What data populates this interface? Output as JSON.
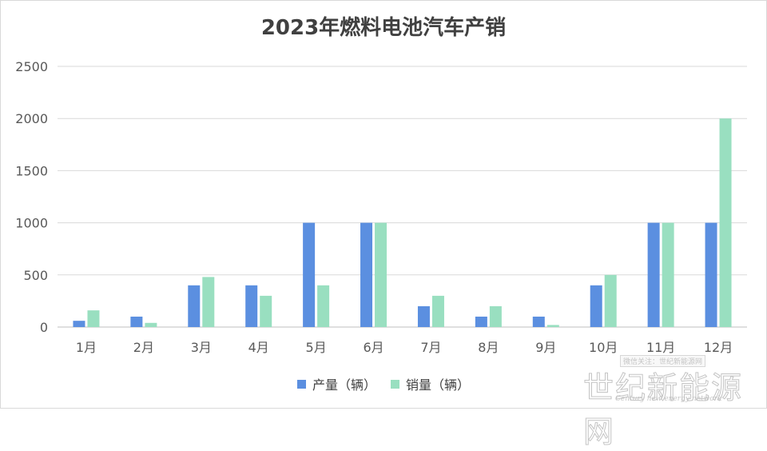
{
  "chart_data": {
    "type": "bar",
    "title": "2023年燃料电池汽车产销",
    "categories": [
      "1月",
      "2月",
      "3月",
      "4月",
      "5月",
      "6月",
      "7月",
      "8月",
      "9月",
      "10月",
      "11月",
      "12月"
    ],
    "series": [
      {
        "name": "产量（辆）",
        "color": "#5b8fe0",
        "values": [
          60,
          100,
          400,
          400,
          1000,
          1000,
          200,
          100,
          100,
          400,
          1000,
          1000
        ]
      },
      {
        "name": "销量（辆）",
        "color": "#99dfc0",
        "values": [
          160,
          40,
          480,
          300,
          400,
          1000,
          300,
          200,
          20,
          500,
          1000,
          2000
        ]
      }
    ],
    "ylim": [
      0,
      2500
    ],
    "yticks": [
      0,
      500,
      1000,
      1500,
      2000,
      2500
    ],
    "grid": true,
    "legend": "bottom"
  },
  "watermark": {
    "top": "微信关注：世纪新能源网",
    "main": "世纪新能源网",
    "sub": "Century new energy network"
  }
}
